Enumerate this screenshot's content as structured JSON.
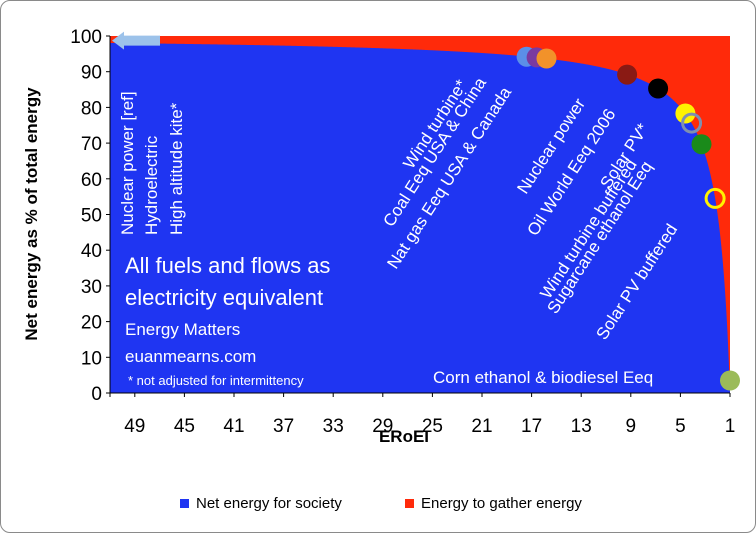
{
  "chart_data": {
    "type": "area",
    "x_reversed": true,
    "xlabel": "ERoEI",
    "ylabel": "Net energy as % of total energy",
    "xlim": [
      51,
      1
    ],
    "ylim": [
      0,
      100
    ],
    "x_ticks": [
      49,
      45,
      41,
      37,
      33,
      29,
      25,
      21,
      17,
      13,
      9,
      5,
      1
    ],
    "y_ticks": [
      0,
      10,
      20,
      30,
      40,
      50,
      60,
      70,
      80,
      90,
      100
    ],
    "grid": false,
    "legend_position": "bottom",
    "series": [
      {
        "name": "Net energy for society",
        "color": "#1f35f2",
        "formula": "100*(1-1/EROEI)"
      },
      {
        "name": "Energy to gather energy",
        "color": "#ff2a0a",
        "formula": "100/EROEI"
      }
    ],
    "annotations_text": [
      "All fuels and flows as",
      "electricity equivalent",
      "Energy Matters",
      "euanmearns.com",
      "* not adjusted for intermittency"
    ],
    "points": [
      {
        "label": "Nuclear power [ref]",
        "x": 75,
        "y": 98.7,
        "color": "#9cc2ea",
        "style": "arrow"
      },
      {
        "label": "Hydroelectric",
        "x": 50,
        "y": 98,
        "color": "#9cc2ea",
        "style": "none"
      },
      {
        "label": "High altitude kite*",
        "x": 50,
        "y": 98,
        "color": "#9cc2ea",
        "style": "none"
      },
      {
        "label": "Wind turbine*",
        "x": 17.4,
        "y": 94.2,
        "color": "#5b8fe8",
        "style": "filled"
      },
      {
        "label": "Coal Eeq USA & China",
        "x": 16.6,
        "y": 94,
        "color": "#7a3aa0",
        "style": "filled"
      },
      {
        "label": "Nat gas Eeq USA & Canada",
        "x": 15.8,
        "y": 93.7,
        "color": "#f2922a",
        "style": "filled"
      },
      {
        "label": "Nuclear power",
        "x": 9.3,
        "y": 89.2,
        "color": "#8a1a14",
        "style": "filled"
      },
      {
        "label": "Oil World Eeq 2006",
        "x": 6.8,
        "y": 85.3,
        "color": "#000000",
        "style": "filled"
      },
      {
        "label": "Solar PV*",
        "x": 4.6,
        "y": 78.3,
        "color": "#fff200",
        "style": "filled"
      },
      {
        "label": "Wind turbine buffered",
        "x": 4.1,
        "y": 75.6,
        "color": "#7f8fb0",
        "style": "ring"
      },
      {
        "label": "Sugarcane ethanol Eeq",
        "x": 3.3,
        "y": 69.7,
        "color": "#1a8a1a",
        "style": "filled"
      },
      {
        "label": "Solar PV buffered",
        "x": 2.2,
        "y": 54.5,
        "color": "#fff200",
        "style": "ring"
      },
      {
        "label": "Corn ethanol & biodiesel Eeq",
        "x": 1.0,
        "y": 3.5,
        "color": "#9bbb59",
        "style": "filled"
      }
    ]
  }
}
